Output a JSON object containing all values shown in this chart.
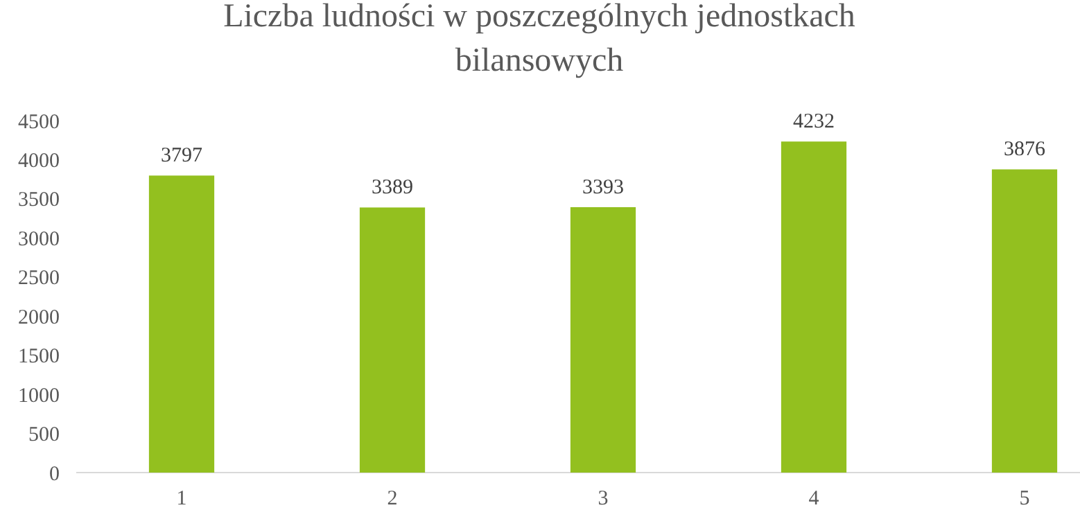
{
  "chart_data": {
    "type": "bar",
    "title": "Liczba ludności w poszczególnych  jednostkach bilansowych",
    "categories": [
      "1",
      "2",
      "3",
      "4",
      "5"
    ],
    "values": [
      3797,
      3389,
      3393,
      4232,
      3876
    ],
    "color": "#93c01f",
    "ylim": [
      0,
      4500
    ],
    "yticks": [
      0,
      500,
      1000,
      1500,
      2000,
      2500,
      3000,
      3500,
      4000,
      4500
    ],
    "grid": false,
    "data_labels": true
  }
}
